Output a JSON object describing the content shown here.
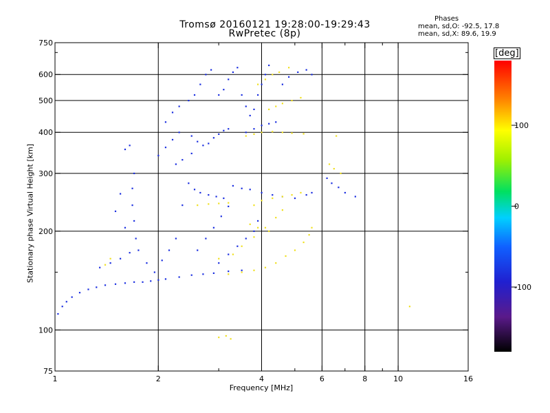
{
  "header": {
    "title_line1": "Tromsø 20160121 19:28:00-19:29:43",
    "title_line2": "RwPretec (8p)",
    "info_title": "Phases",
    "info_o": "mean, sd,O: -92.5, 17.8",
    "info_x": "mean, sd,X: 89.6, 19.9"
  },
  "colorbar": {
    "unit": "[deg]",
    "range": [
      -180,
      180
    ],
    "ticks": [
      {
        "value": 100,
        "label": "100"
      },
      {
        "value": 0,
        "label": "0"
      },
      {
        "value": -100,
        "label": "-100"
      }
    ]
  },
  "chart_data": {
    "type": "scatter",
    "title": "Tromsø 20160121 19:28:00-19:29:43",
    "subtitle": "RwPretec (8p)",
    "xlabel": "Frequency [MHz]",
    "ylabel": "Stationary phase Virtual Height [km]",
    "x_scale": "log",
    "y_scale": "log",
    "xlim": [
      1,
      16
    ],
    "ylim": [
      75,
      750
    ],
    "grid": true,
    "x_ticks": [
      {
        "value": 1,
        "label": "1"
      },
      {
        "value": 2,
        "label": "2"
      },
      {
        "value": 4,
        "label": "4"
      },
      {
        "value": 6,
        "label": "6"
      },
      {
        "value": 8,
        "label": "8"
      },
      {
        "value": 10,
        "label": "10"
      },
      {
        "value": 16,
        "label": "16"
      }
    ],
    "x_minor_ticks": [
      3,
      5,
      7,
      9
    ],
    "x_grid": [
      2,
      4,
      6,
      8,
      10
    ],
    "y_ticks": [
      {
        "value": 75,
        "label": "75"
      },
      {
        "value": 100,
        "label": "100"
      },
      {
        "value": 200,
        "label": "200"
      },
      {
        "value": 300,
        "label": "300"
      },
      {
        "value": 400,
        "label": "400"
      },
      {
        "value": 500,
        "label": "500"
      },
      {
        "value": 600,
        "label": "600"
      },
      {
        "value": 750,
        "label": "750"
      }
    ],
    "y_minor_ticks": [
      150,
      700
    ],
    "y_grid": [
      100,
      200,
      300,
      400,
      500,
      600
    ],
    "color_scale": "phase [deg], -180 to 180",
    "series": [
      {
        "name": "O",
        "color": "#1a2ee0",
        "points": [
          [
            1.02,
            112
          ],
          [
            1.05,
            118
          ],
          [
            1.08,
            122
          ],
          [
            1.12,
            126
          ],
          [
            1.18,
            130
          ],
          [
            1.25,
            133
          ],
          [
            1.32,
            135
          ],
          [
            1.4,
            137
          ],
          [
            1.5,
            138
          ],
          [
            1.6,
            139
          ],
          [
            1.7,
            140
          ],
          [
            1.8,
            140
          ],
          [
            1.9,
            141
          ],
          [
            2.0,
            142
          ],
          [
            2.1,
            143
          ],
          [
            2.3,
            145
          ],
          [
            2.5,
            147
          ],
          [
            2.7,
            148
          ],
          [
            2.9,
            149
          ],
          [
            3.2,
            151
          ],
          [
            3.5,
            152
          ],
          [
            1.35,
            155
          ],
          [
            1.45,
            160
          ],
          [
            1.55,
            165
          ],
          [
            1.65,
            172
          ],
          [
            1.72,
            190
          ],
          [
            1.7,
            215
          ],
          [
            1.68,
            240
          ],
          [
            1.68,
            270
          ],
          [
            1.7,
            300
          ],
          [
            1.55,
            260
          ],
          [
            1.5,
            230
          ],
          [
            1.6,
            205
          ],
          [
            1.75,
            175
          ],
          [
            1.85,
            160
          ],
          [
            1.95,
            150
          ],
          [
            2.05,
            163
          ],
          [
            2.15,
            175
          ],
          [
            2.25,
            190
          ],
          [
            2.35,
            240
          ],
          [
            2.45,
            280
          ],
          [
            2.55,
            268
          ],
          [
            2.65,
            262
          ],
          [
            2.8,
            258
          ],
          [
            2.95,
            255
          ],
          [
            3.1,
            252
          ],
          [
            2.6,
            175
          ],
          [
            2.75,
            190
          ],
          [
            2.9,
            205
          ],
          [
            3.05,
            222
          ],
          [
            3.2,
            238
          ],
          [
            3.0,
            160
          ],
          [
            3.2,
            170
          ],
          [
            3.4,
            180
          ],
          [
            3.6,
            190
          ],
          [
            3.8,
            200
          ],
          [
            3.9,
            215
          ],
          [
            3.3,
            275
          ],
          [
            3.5,
            270
          ],
          [
            3.7,
            268
          ],
          [
            4.0,
            262
          ],
          [
            4.3,
            258
          ],
          [
            4.6,
            255
          ],
          [
            5.0,
            252
          ],
          [
            5.4,
            258
          ],
          [
            5.6,
            262
          ],
          [
            1.6,
            355
          ],
          [
            1.65,
            365
          ],
          [
            2.0,
            340
          ],
          [
            2.1,
            360
          ],
          [
            2.2,
            380
          ],
          [
            2.3,
            400
          ],
          [
            2.1,
            430
          ],
          [
            2.2,
            460
          ],
          [
            2.3,
            480
          ],
          [
            2.45,
            500
          ],
          [
            2.55,
            520
          ],
          [
            2.65,
            560
          ],
          [
            2.75,
            600
          ],
          [
            2.85,
            620
          ],
          [
            2.5,
            390
          ],
          [
            2.6,
            375
          ],
          [
            2.7,
            365
          ],
          [
            2.8,
            370
          ],
          [
            2.9,
            385
          ],
          [
            3.0,
            395
          ],
          [
            3.1,
            405
          ],
          [
            3.2,
            410
          ],
          [
            3.0,
            520
          ],
          [
            3.1,
            540
          ],
          [
            3.2,
            580
          ],
          [
            3.3,
            610
          ],
          [
            3.4,
            630
          ],
          [
            3.5,
            520
          ],
          [
            3.6,
            480
          ],
          [
            3.7,
            450
          ],
          [
            3.8,
            470
          ],
          [
            3.9,
            520
          ],
          [
            4.0,
            560
          ],
          [
            4.1,
            600
          ],
          [
            4.2,
            640
          ],
          [
            3.6,
            400
          ],
          [
            3.8,
            410
          ],
          [
            4.0,
            420
          ],
          [
            4.2,
            425
          ],
          [
            4.4,
            430
          ],
          [
            4.6,
            560
          ],
          [
            4.8,
            590
          ],
          [
            5.1,
            610
          ],
          [
            5.4,
            620
          ],
          [
            5.6,
            600
          ],
          [
            6.2,
            290
          ],
          [
            6.4,
            280
          ],
          [
            6.7,
            272
          ],
          [
            7.0,
            262
          ],
          [
            7.5,
            255
          ],
          [
            2.25,
            320
          ],
          [
            2.35,
            330
          ],
          [
            2.5,
            345
          ]
        ]
      },
      {
        "name": "X",
        "color": "#f0e020",
        "points": [
          [
            2.6,
            240
          ],
          [
            2.8,
            242
          ],
          [
            3.0,
            243
          ],
          [
            3.2,
            244
          ],
          [
            3.0,
            165
          ],
          [
            3.3,
            170
          ],
          [
            3.5,
            180
          ],
          [
            3.8,
            192
          ],
          [
            4.1,
            205
          ],
          [
            4.4,
            220
          ],
          [
            4.6,
            232
          ],
          [
            3.2,
            148
          ],
          [
            3.5,
            150
          ],
          [
            3.8,
            152
          ],
          [
            4.1,
            155
          ],
          [
            4.4,
            160
          ],
          [
            4.7,
            168
          ],
          [
            5.0,
            175
          ],
          [
            5.3,
            185
          ],
          [
            5.5,
            195
          ],
          [
            5.6,
            205
          ],
          [
            3.8,
            240
          ],
          [
            4.0,
            248
          ],
          [
            4.3,
            252
          ],
          [
            4.6,
            255
          ],
          [
            4.9,
            258
          ],
          [
            5.2,
            262
          ],
          [
            3.6,
            390
          ],
          [
            3.8,
            395
          ],
          [
            4.0,
            400
          ],
          [
            4.3,
            402
          ],
          [
            4.6,
            400
          ],
          [
            4.9,
            398
          ],
          [
            5.3,
            396
          ],
          [
            4.2,
            470
          ],
          [
            4.4,
            480
          ],
          [
            4.6,
            490
          ],
          [
            4.9,
            500
          ],
          [
            5.2,
            510
          ],
          [
            3.9,
            560
          ],
          [
            4.1,
            580
          ],
          [
            4.3,
            600
          ],
          [
            4.5,
            610
          ],
          [
            4.8,
            630
          ],
          [
            3.7,
            210
          ],
          [
            3.9,
            205
          ],
          [
            4.2,
            200
          ],
          [
            3.0,
            95
          ],
          [
            3.15,
            96
          ],
          [
            3.25,
            94
          ],
          [
            1.4,
            158
          ],
          [
            1.45,
            165
          ],
          [
            6.3,
            320
          ],
          [
            6.5,
            310
          ],
          [
            6.8,
            300
          ],
          [
            6.6,
            390
          ],
          [
            10.8,
            118
          ]
        ]
      }
    ]
  }
}
